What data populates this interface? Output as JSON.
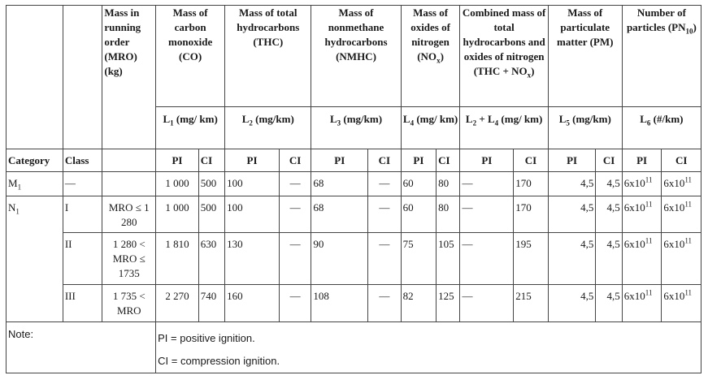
{
  "headers": {
    "mro": "Mass in running order (MRO) (kg)",
    "co": "Mass of carbon monoxide (CO)",
    "thc": "Mass of total hydrocarbons (THC)",
    "nmhc": "Mass of nonmethane hydrocarbons (NMHC)",
    "nox_pre": "Mass of oxides of nitrogen (NO",
    "nox_sub": "x",
    "nox_post": ")",
    "thcnox_pre": "Combined mass of total hydrocarbons and oxides of nitrogen (THC + NO",
    "thcnox_sub": "x",
    "thcnox_post": ")",
    "pm": "Mass of particulate matter (PM)",
    "pn_pre": "Number of particles (PN",
    "pn_sub": "10",
    "pn_post": ")"
  },
  "units": {
    "l1_sym": "L",
    "l1_sub": "1",
    "l1_unit": " (mg/ km)",
    "l2_sym": "L",
    "l2_sub": "2",
    "l2_unit": " (mg/km)",
    "l3_sym": "L",
    "l3_sub": "3",
    "l3_unit": " (mg/km)",
    "l4_sym": "L",
    "l4_sub": "4",
    "l4_unit": " (mg/ km)",
    "l24_a": "L",
    "l24_a_sub": "2",
    "l24_mid": " + L",
    "l24_b_sub": "4",
    "l24_unit": " (mg/ km)",
    "l5_sym": "L",
    "l5_sub": "5",
    "l5_unit": " (mg/km)",
    "l6_sym": "L",
    "l6_sub": "6",
    "l6_unit": " (#/km)"
  },
  "subheader": {
    "category": "Category",
    "class": "Class",
    "pi": "PI",
    "ci": "CI"
  },
  "rows": [
    {
      "category": "M",
      "category_sub": "1",
      "class": "—",
      "mro": "",
      "co_pi": "1 000",
      "co_ci": "500",
      "thc_pi": "100",
      "thc_ci": "—",
      "nmhc_pi": "68",
      "nmhc_ci": "—",
      "nox_pi": "60",
      "nox_ci": "80",
      "thcnox_pi": "—",
      "thcnox_ci": "170",
      "pm_pi": "4,5",
      "pm_ci": "4,5",
      "pn_pi": "6x10",
      "pn_pi_exp": "11",
      "pn_ci": "6x10",
      "pn_ci_exp": "11"
    },
    {
      "category": "N",
      "category_sub": "1",
      "class": "I",
      "mro": "MRO ≤ 1 280",
      "co_pi": "1 000",
      "co_ci": "500",
      "thc_pi": "100",
      "thc_ci": "—",
      "nmhc_pi": "68",
      "nmhc_ci": "—",
      "nox_pi": "60",
      "nox_ci": "80",
      "thcnox_pi": "—",
      "thcnox_ci": "170",
      "pm_pi": "4,5",
      "pm_ci": "4,5",
      "pn_pi": "6x10",
      "pn_pi_exp": "11",
      "pn_ci": "6x10",
      "pn_ci_exp": "11"
    },
    {
      "category": "",
      "category_sub": "",
      "class": "II",
      "mro": "1 280 < MRO ≤ 1735",
      "co_pi": "1 810",
      "co_ci": "630",
      "thc_pi": "130",
      "thc_ci": "—",
      "nmhc_pi": "90",
      "nmhc_ci": "—",
      "nox_pi": "75",
      "nox_ci": "105",
      "thcnox_pi": "—",
      "thcnox_ci": "195",
      "pm_pi": "4,5",
      "pm_ci": "4,5",
      "pn_pi": "6x10",
      "pn_pi_exp": "11",
      "pn_ci": "6x10",
      "pn_ci_exp": "11"
    },
    {
      "category": "",
      "category_sub": "",
      "class": "III",
      "mro": "1 735 < MRO",
      "co_pi": "2 270",
      "co_ci": "740",
      "thc_pi": "160",
      "thc_ci": "—",
      "nmhc_pi": "108",
      "nmhc_ci": "—",
      "nox_pi": "82",
      "nox_ci": "125",
      "thcnox_pi": "—",
      "thcnox_ci": "215",
      "pm_pi": "4,5",
      "pm_ci": "4,5",
      "pn_pi": "6x10",
      "pn_pi_exp": "11",
      "pn_ci": "6x10",
      "pn_ci_exp": "11"
    }
  ],
  "note": {
    "label": "Note:",
    "pi_def": "PI = positive ignition.",
    "ci_def": "CI = compression ignition."
  }
}
